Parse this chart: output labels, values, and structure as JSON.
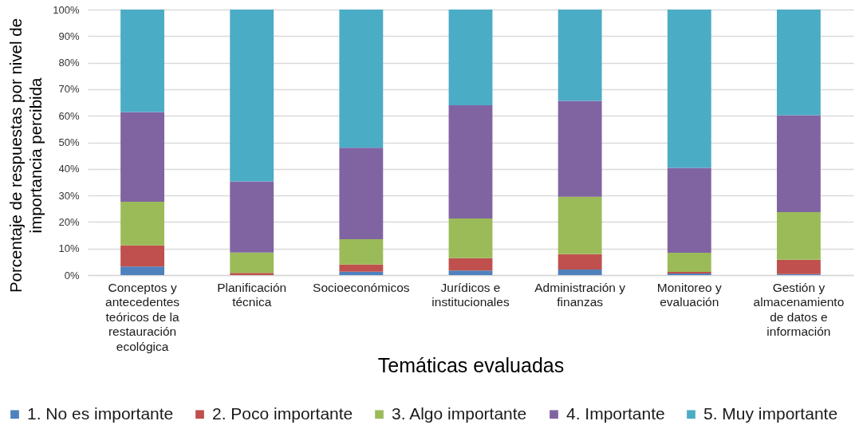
{
  "chart_data": {
    "type": "bar",
    "stacked": true,
    "ylabel": "Porcentaje de respuestas por nivel de importancia percibida",
    "xlabel": "Temáticas evaluadas",
    "categories": [
      "Conceptos y antecedentes teóricos de la restauración ecológica",
      "Planificación técnica",
      "Socioeconómicos",
      "Jurídicos e institucionales",
      "Administración y finanzas",
      "Monitoreo y evaluación",
      "Gestión y almacenamiento de datos e información"
    ],
    "series": [
      {
        "name": "1. No es importante",
        "color": "#4f81bd",
        "values": [
          3.2,
          null,
          1.3,
          1.7,
          2.1,
          0.6,
          0.4
        ]
      },
      {
        "name": "2. Poco importante",
        "color": "#c0504d",
        "values": [
          8.0,
          0.8,
          2.7,
          4.7,
          5.8,
          0.6,
          5.4
        ]
      },
      {
        "name": "3. Algo importante",
        "color": "#9bbb59",
        "values": [
          16.4,
          7.7,
          9.5,
          14.9,
          21.6,
          7.2,
          17.9
        ]
      },
      {
        "name": "4. Importante",
        "color": "#8064a2",
        "values": [
          33.8,
          26.8,
          34.5,
          42.7,
          36.1,
          32.0,
          36.5
        ]
      },
      {
        "name": "5. Muy importante",
        "color": "#4bacc6",
        "values": [
          38.6,
          64.7,
          52.0,
          36.0,
          34.4,
          59.6,
          39.8
        ]
      }
    ],
    "ylim": [
      0,
      100
    ],
    "yticks": [
      {
        "value": 0,
        "label": "0%"
      },
      {
        "value": 10,
        "label": "10%"
      },
      {
        "value": 20,
        "label": "20%"
      },
      {
        "value": 30,
        "label": "30%"
      },
      {
        "value": 40,
        "label": "40%"
      },
      {
        "value": 50,
        "label": "50%"
      },
      {
        "value": 60,
        "label": "60%"
      },
      {
        "value": 70,
        "label": "70%"
      },
      {
        "value": 80,
        "label": "80%"
      },
      {
        "value": 90,
        "label": "90%"
      },
      {
        "value": 100,
        "label": "100%"
      }
    ],
    "grid": "y",
    "legend": "bottom"
  }
}
